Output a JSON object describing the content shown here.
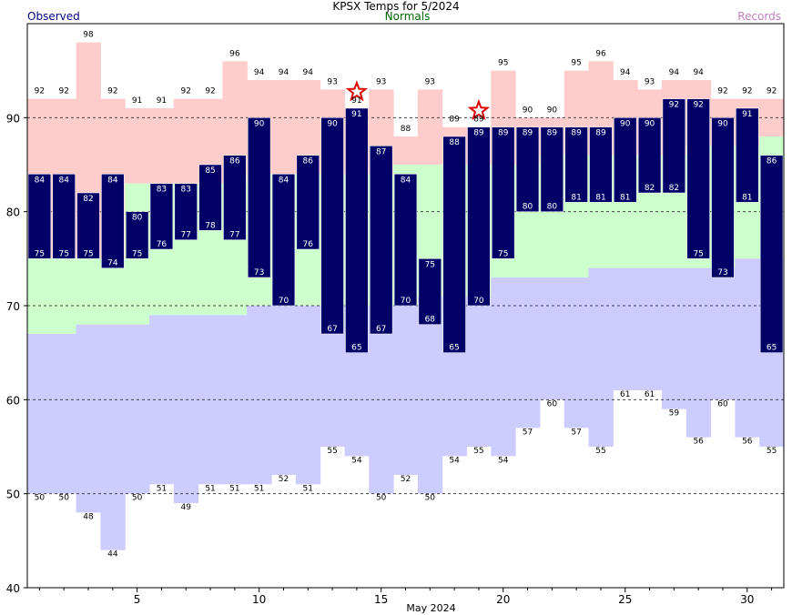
{
  "chart_data": {
    "type": "bar",
    "title": "KPSX Temps for 5/2024",
    "legend": [
      "Observed",
      "Normals",
      "Records"
    ],
    "xlabel": "May 2024",
    "xticks": [
      5,
      10,
      15,
      20,
      25,
      30
    ],
    "yticks": [
      40,
      50,
      60,
      70,
      80,
      90
    ],
    "ylim": [
      40,
      100
    ],
    "xlim": [
      0.5,
      31.5
    ],
    "gridlines": [
      50,
      60,
      70,
      80,
      90
    ],
    "days": [
      1,
      2,
      3,
      4,
      5,
      6,
      7,
      8,
      9,
      10,
      11,
      12,
      13,
      14,
      15,
      16,
      17,
      18,
      19,
      20,
      21,
      22,
      23,
      24,
      25,
      26,
      27,
      28,
      29,
      30,
      31
    ],
    "observed_high": [
      84,
      84,
      82,
      84,
      80,
      83,
      83,
      85,
      86,
      90,
      84,
      86,
      90,
      91,
      87,
      84,
      75,
      88,
      89,
      89,
      89,
      89,
      89,
      89,
      90,
      90,
      92,
      92,
      90,
      91,
      86
    ],
    "observed_low": [
      75,
      75,
      75,
      74,
      75,
      76,
      77,
      78,
      77,
      73,
      70,
      76,
      67,
      65,
      67,
      70,
      68,
      65,
      70,
      75,
      80,
      80,
      81,
      81,
      81,
      82,
      82,
      75,
      73,
      81,
      65
    ],
    "normal_high": [
      75,
      75,
      75,
      75,
      83,
      83,
      83,
      83,
      83,
      84,
      84,
      84,
      84,
      84,
      84,
      85,
      85,
      85,
      85,
      85,
      85,
      86,
      86,
      86,
      86,
      86,
      86,
      87,
      87,
      87,
      88
    ],
    "normal_low": [
      67,
      67,
      68,
      68,
      68,
      69,
      69,
      69,
      69,
      70,
      70,
      70,
      70,
      70,
      70,
      70,
      71,
      71,
      71,
      73,
      73,
      73,
      73,
      74,
      74,
      74,
      74,
      74,
      74,
      75,
      75
    ],
    "record_high": [
      92,
      92,
      98,
      92,
      91,
      91,
      92,
      92,
      96,
      94,
      94,
      94,
      93,
      91,
      93,
      88,
      93,
      89,
      89,
      95,
      90,
      90,
      95,
      96,
      94,
      93,
      94,
      94,
      92,
      92,
      92
    ],
    "record_low": [
      50,
      50,
      48,
      44,
      50,
      51,
      49,
      51,
      51,
      51,
      52,
      51,
      55,
      54,
      50,
      52,
      50,
      54,
      55,
      54,
      57,
      60,
      57,
      55,
      61,
      61,
      59,
      56,
      60,
      56,
      55
    ],
    "record_set_days": [
      14,
      19
    ],
    "colors": {
      "observed": "#000066",
      "normal": "#ccffcc",
      "record_high": "#ffcccc",
      "record_low": "#ccccff",
      "star": "#dd0000",
      "legend_observed": "#000080",
      "legend_normals": "#006400",
      "legend_records": "#c080c0"
    }
  }
}
